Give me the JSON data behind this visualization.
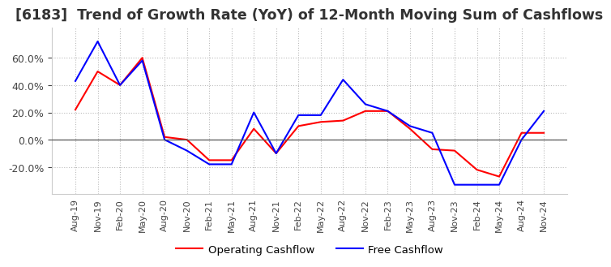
{
  "title": "[6183]  Trend of Growth Rate (YoY) of 12-Month Moving Sum of Cashflows",
  "title_fontsize": 12.5,
  "ylim": [
    -0.4,
    0.82
  ],
  "yticks": [
    -0.2,
    0.0,
    0.2,
    0.4,
    0.6
  ],
  "background_color": "#ffffff",
  "grid_color": "#bbbbbb",
  "x_labels": [
    "Aug-19",
    "Nov-19",
    "Feb-20",
    "May-20",
    "Aug-20",
    "Nov-20",
    "Feb-21",
    "May-21",
    "Aug-21",
    "Nov-21",
    "Feb-22",
    "May-22",
    "Aug-22",
    "Nov-22",
    "Feb-23",
    "May-23",
    "Aug-23",
    "Nov-23",
    "Feb-24",
    "May-24",
    "Aug-24",
    "Nov-24"
  ],
  "operating_cashflow": [
    0.22,
    0.5,
    0.4,
    0.6,
    0.02,
    0.0,
    -0.15,
    -0.15,
    0.08,
    -0.1,
    0.1,
    0.13,
    0.14,
    0.21,
    0.21,
    0.08,
    -0.07,
    -0.08,
    -0.22,
    -0.27,
    0.05,
    0.05
  ],
  "free_cashflow": [
    0.43,
    0.72,
    0.4,
    0.58,
    0.0,
    -0.08,
    -0.18,
    -0.18,
    0.2,
    -0.1,
    0.18,
    0.18,
    0.44,
    0.26,
    0.21,
    0.1,
    0.05,
    -0.33,
    -0.33,
    -0.33,
    0.0,
    0.21
  ],
  "operating_color": "#ff0000",
  "free_color": "#0000ff",
  "legend_labels": [
    "Operating Cashflow",
    "Free Cashflow"
  ]
}
